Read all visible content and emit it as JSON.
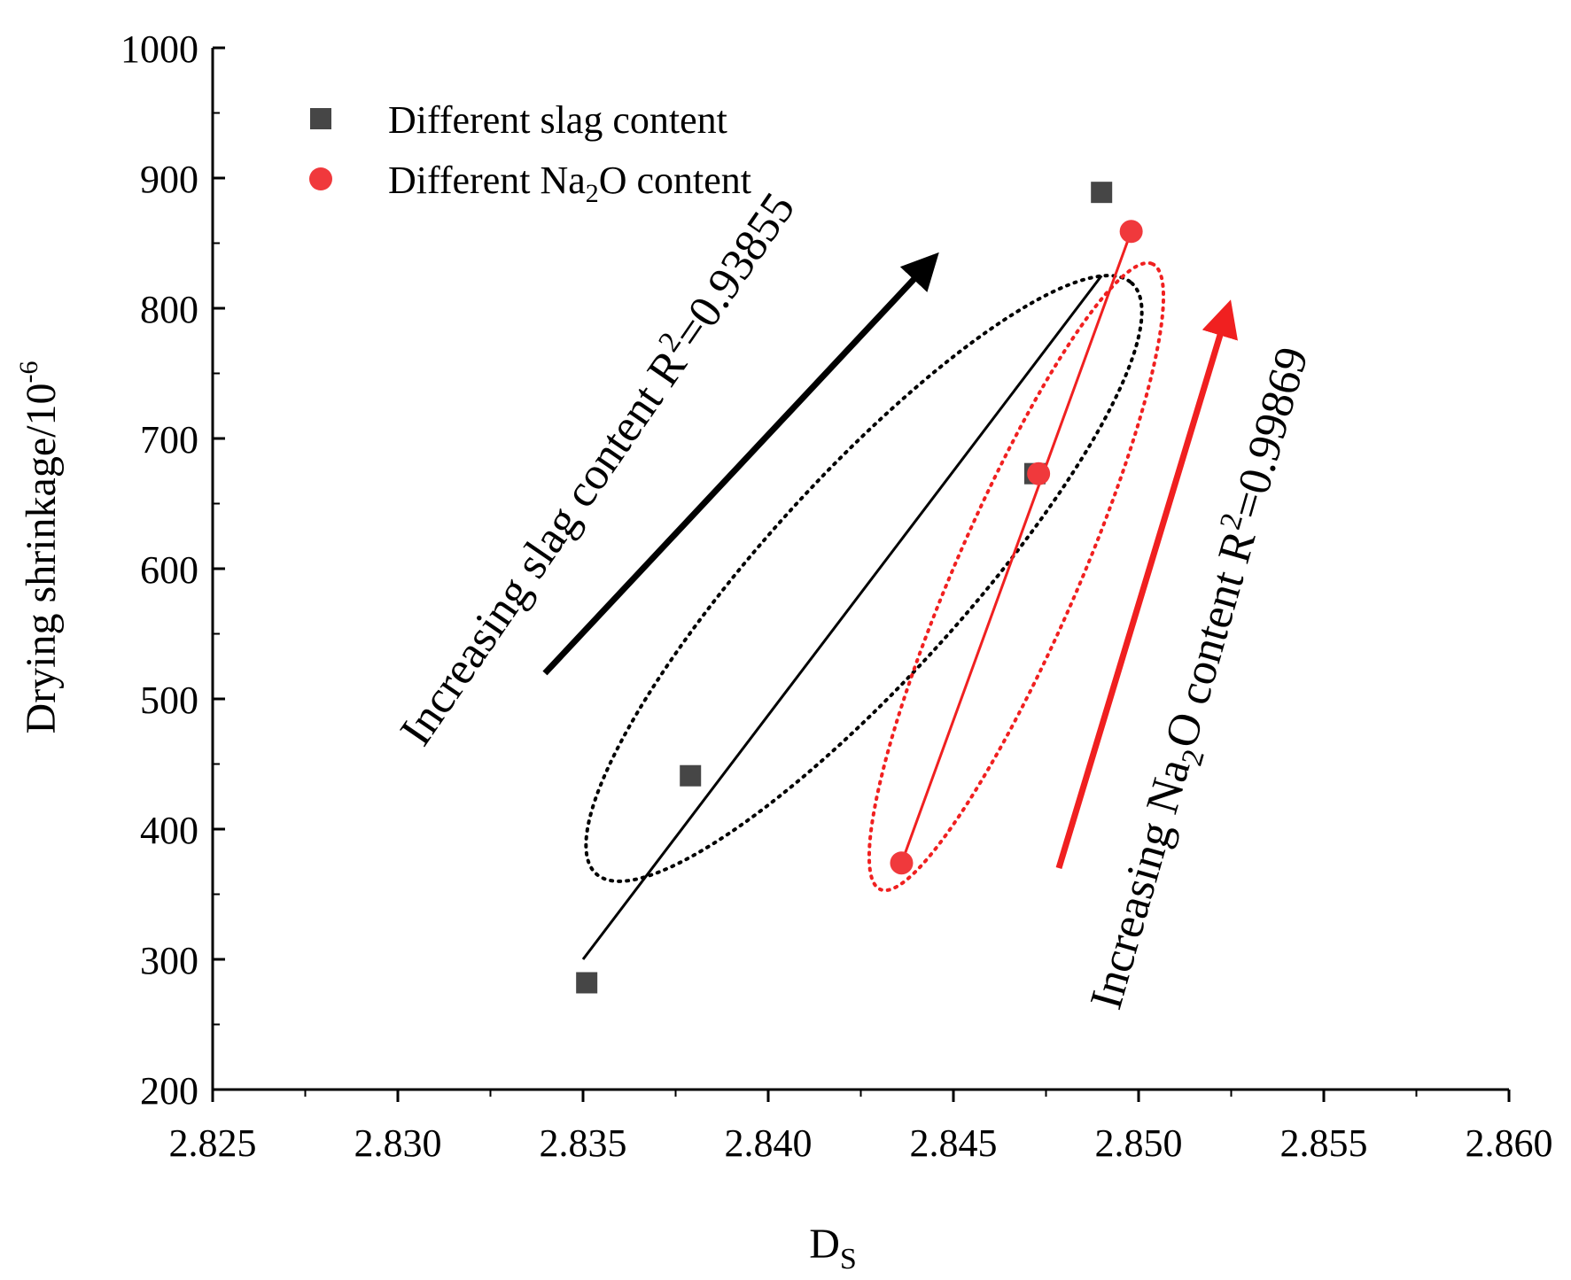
{
  "chart_data": {
    "type": "scatter",
    "xlabel_main": "D",
    "xlabel_sub": "S",
    "ylabel_main": "Drying shrinkage/10",
    "ylabel_exp": "-6",
    "xlim": [
      2.825,
      2.86
    ],
    "ylim": [
      200,
      1000
    ],
    "x_ticks": [
      "2.825",
      "2.830",
      "2.835",
      "2.840",
      "2.845",
      "2.850",
      "2.855",
      "2.860"
    ],
    "y_ticks": [
      "200",
      "300",
      "400",
      "500",
      "600",
      "700",
      "800",
      "900",
      "1000"
    ],
    "x_tick_values": [
      2.825,
      2.83,
      2.835,
      2.84,
      2.845,
      2.85,
      2.855,
      2.86
    ],
    "y_tick_values": [
      200,
      300,
      400,
      500,
      600,
      700,
      800,
      900,
      1000
    ],
    "series": [
      {
        "name": "Different slag content",
        "marker": "square",
        "color": "#464646",
        "x": [
          2.8351,
          2.8379,
          2.8472,
          2.849
        ],
        "y": [
          282,
          441,
          673,
          889
        ],
        "fit": {
          "x": [
            2.835,
            2.849
          ],
          "y": [
            300,
            825
          ]
        }
      },
      {
        "name": "Different Na2O content",
        "marker": "circle",
        "color": "#f0393c",
        "x": [
          2.8436,
          2.8473,
          2.8498
        ],
        "y": [
          374,
          673,
          859
        ],
        "fit": {
          "x": [
            2.8436,
            2.8498
          ],
          "y": [
            374,
            859
          ]
        }
      }
    ],
    "legend": {
      "position": "top-left",
      "entries": [
        {
          "text": "Different slag content"
        },
        {
          "pre": "Different Na",
          "sub": "2",
          "post": "O content"
        }
      ]
    },
    "annotations": {
      "slag": {
        "pre": "Increasing slag content R",
        "sup": "2",
        "post": "=0.93855",
        "color": "#000000"
      },
      "na2o": {
        "pre": "Increasing Na",
        "sub": "2",
        "mid": "O content R",
        "sup": "2",
        "post": "=0.99869",
        "color": "#000000"
      },
      "slag_arrow_color": "#000000",
      "na2o_arrow_color": "#f02020"
    },
    "groupings": [
      {
        "name": "slag-group-ellipse",
        "color": "#000000",
        "style": "dotted"
      },
      {
        "name": "na2o-group-ellipse",
        "color": "#f02020",
        "style": "dotted"
      }
    ]
  }
}
